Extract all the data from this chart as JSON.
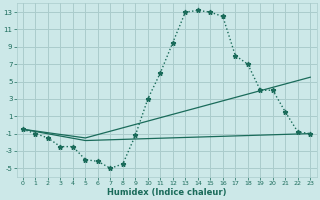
{
  "xlabel": "Humidex (Indice chaleur)",
  "bg_color": "#cce8e8",
  "grid_color": "#aacccc",
  "line_color": "#1a6b5a",
  "xlim": [
    -0.5,
    23.5
  ],
  "ylim": [
    -6,
    14
  ],
  "yticks": [
    -5,
    -3,
    -1,
    1,
    3,
    5,
    7,
    9,
    11,
    13
  ],
  "xticks": [
    0,
    1,
    2,
    3,
    4,
    5,
    6,
    7,
    8,
    9,
    10,
    11,
    12,
    13,
    14,
    15,
    16,
    17,
    18,
    19,
    20,
    21,
    22,
    23
  ],
  "series1_x": [
    0,
    1,
    2,
    3,
    4,
    5,
    6,
    7,
    8,
    9,
    10,
    11,
    12,
    13,
    14,
    15,
    16,
    17,
    18,
    19,
    20,
    21,
    22,
    23
  ],
  "series1_y": [
    -0.5,
    -1.0,
    -1.5,
    -2.5,
    -2.5,
    -4.0,
    -4.2,
    -5.0,
    -4.5,
    -1.2,
    3.0,
    6.0,
    9.5,
    13.0,
    13.2,
    13.0,
    12.5,
    8.0,
    7.0,
    4.0,
    4.0,
    1.5,
    -0.8,
    -1.0
  ],
  "series2_x": [
    0,
    5,
    23
  ],
  "series2_y": [
    -0.5,
    -1.5,
    5.5
  ],
  "series3_x": [
    0,
    5,
    23
  ],
  "series3_y": [
    -0.5,
    -1.8,
    -1.0
  ]
}
